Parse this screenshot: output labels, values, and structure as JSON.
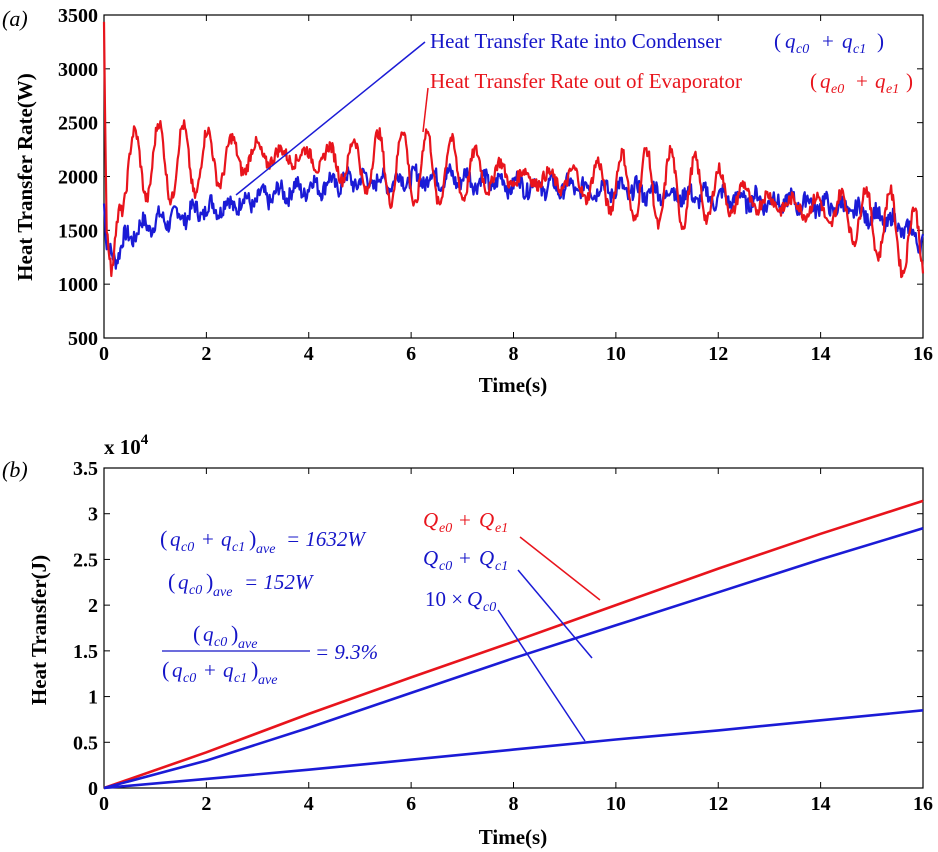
{
  "colors": {
    "red": "#e8141c",
    "blue": "#1b1bd6",
    "text_blue": "#1515c8"
  },
  "chart_data": [
    {
      "type": "line",
      "panel_label": "(a)",
      "xlabel": "Time(s)",
      "ylabel": "Heat Transfer Rate(W)",
      "xlim": [
        0,
        16
      ],
      "ylim": [
        500,
        3500
      ],
      "xticks": [
        "0",
        "2",
        "4",
        "6",
        "8",
        "10",
        "12",
        "14",
        "16"
      ],
      "yticks": [
        "500",
        "1000",
        "1500",
        "2000",
        "2500",
        "3000",
        "3500"
      ],
      "grid": false,
      "series": [
        {
          "name": "Heat Transfer Rate into Condenser (q_c0 + q_c1)",
          "color": "blue",
          "x": [
            0,
            0.05,
            0.2,
            0.4,
            0.7,
            1,
            1.5,
            2,
            2.5,
            3,
            3.5,
            4,
            4.5,
            5,
            5.5,
            6,
            6.5,
            7,
            7.5,
            8,
            8.5,
            9,
            9.5,
            10,
            10.5,
            11,
            11.5,
            12,
            12.5,
            13,
            13.5,
            14,
            14.5,
            15,
            15.5,
            16
          ],
          "y": [
            1750,
            1350,
            1250,
            1400,
            1520,
            1580,
            1640,
            1700,
            1740,
            1790,
            1850,
            1900,
            1940,
            1970,
            1950,
            1980,
            1990,
            1980,
            1950,
            1930,
            1910,
            1900,
            1890,
            1880,
            1860,
            1840,
            1820,
            1800,
            1790,
            1770,
            1760,
            1740,
            1700,
            1640,
            1550,
            1400
          ]
        },
        {
          "name": "Heat Transfer Rate out of Evaporator (q_e0 + q_e1)",
          "color": "red",
          "x": [
            0,
            0.05,
            0.15,
            0.3,
            0.5,
            1,
            1.5,
            2,
            2.5,
            3,
            3.5,
            4,
            4.5,
            5,
            5.5,
            6,
            6.5,
            7,
            7.5,
            8,
            8.5,
            9,
            9.5,
            10,
            10.5,
            11,
            11.5,
            12,
            12.5,
            13,
            13.5,
            14,
            14.5,
            15,
            15.5,
            16
          ],
          "y": [
            3400,
            1500,
            1000,
            1900,
            2100,
            2150,
            2130,
            2150,
            2170,
            2200,
            2190,
            2180,
            2150,
            2120,
            2100,
            2080,
            2070,
            2050,
            2030,
            2000,
            1980,
            1960,
            1940,
            1930,
            1910,
            1890,
            1870,
            1850,
            1800,
            1760,
            1730,
            1700,
            1650,
            1600,
            1500,
            1280
          ]
        }
      ],
      "annotations": [
        {
          "text": "Heat Transfer Rate into Condenser",
          "math": [
            "q",
            "c0",
            "q",
            "c1"
          ],
          "color": "blue"
        },
        {
          "text": "Heat Transfer Rate out of  Evaporator",
          "math": [
            "q",
            "e0",
            "q",
            "e1"
          ],
          "color": "red"
        }
      ]
    },
    {
      "type": "line",
      "panel_label": "(b)",
      "xlabel": "Time(s)",
      "ylabel": "Heat Transfer(J)",
      "multiplier": "x 10",
      "multiplier_exp": "4",
      "xlim": [
        0,
        16
      ],
      "ylim": [
        0,
        3.5
      ],
      "xticks": [
        "0",
        "2",
        "4",
        "6",
        "8",
        "10",
        "12",
        "14",
        "16"
      ],
      "yticks": [
        "0",
        "0.5",
        "1",
        "1.5",
        "2",
        "2.5",
        "3",
        "3.5"
      ],
      "grid": false,
      "series": [
        {
          "label": "Q_e0 + Q_e1",
          "color": "red",
          "x": [
            0,
            2,
            4,
            6,
            8,
            10,
            12,
            14,
            16
          ],
          "y": [
            0,
            0.39,
            0.81,
            1.21,
            1.6,
            2.0,
            2.4,
            2.78,
            3.14
          ]
        },
        {
          "label": "Q_c0 + Q_c1",
          "color": "blue",
          "x": [
            0,
            2,
            4,
            6,
            8,
            10,
            12,
            14,
            16
          ],
          "y": [
            0,
            0.3,
            0.66,
            1.04,
            1.42,
            1.78,
            2.14,
            2.5,
            2.84
          ]
        },
        {
          "label": "10×Q_c0",
          "color": "blue",
          "x": [
            0,
            2,
            4,
            6,
            8,
            10,
            12,
            14,
            16
          ],
          "y": [
            0,
            0.1,
            0.2,
            0.31,
            0.42,
            0.53,
            0.63,
            0.74,
            0.85
          ]
        }
      ],
      "text_annotations": {
        "line1_value": "= 1632W",
        "line2_value": "= 152W",
        "line3_value": "= 9.3%",
        "ave": "ave"
      }
    }
  ]
}
